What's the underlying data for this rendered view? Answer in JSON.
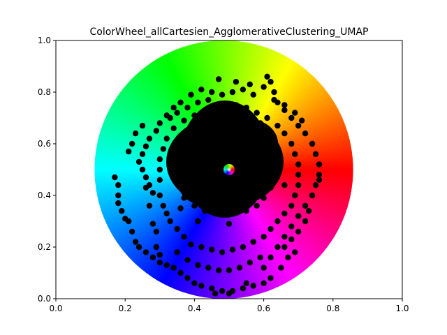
{
  "chart_data": {
    "type": "scatter",
    "title": "ColorWheel_allCartesien_AgglomerativeClustering_UMAP",
    "xlabel": "",
    "ylabel": "",
    "xlim": [
      0,
      1
    ],
    "ylim": [
      0,
      1
    ],
    "x_ticks": [
      "0.0",
      "0.2",
      "0.4",
      "0.6",
      "0.8",
      "1.0"
    ],
    "y_ticks": [
      "0.0",
      "0.2",
      "0.4",
      "0.6",
      "0.8",
      "1.0"
    ],
    "grid": false,
    "background": {
      "kind": "hsv-color-wheel",
      "center": [
        0.5,
        0.5
      ],
      "radius_fraction_of_axes": 0.5
    },
    "marker_color": "#000000",
    "series": [
      {
        "values": [
          [
            0.17,
            0.47
          ],
          [
            0.18,
            0.44
          ],
          [
            0.18,
            0.4
          ],
          [
            0.18,
            0.37
          ],
          [
            0.19,
            0.34
          ],
          [
            0.2,
            0.31
          ],
          [
            0.21,
            0.3
          ],
          [
            0.22,
            0.26
          ],
          [
            0.23,
            0.22
          ],
          [
            0.24,
            0.2
          ],
          [
            0.26,
            0.18
          ],
          [
            0.28,
            0.16
          ],
          [
            0.3,
            0.14
          ],
          [
            0.32,
            0.13
          ],
          [
            0.34,
            0.12
          ],
          [
            0.36,
            0.1
          ],
          [
            0.38,
            0.08
          ],
          [
            0.4,
            0.06
          ],
          [
            0.42,
            0.05
          ],
          [
            0.45,
            0.04
          ],
          [
            0.48,
            0.03
          ],
          [
            0.51,
            0.03
          ],
          [
            0.54,
            0.04
          ],
          [
            0.57,
            0.05
          ],
          [
            0.6,
            0.06
          ],
          [
            0.62,
            0.08
          ],
          [
            0.26,
            0.59
          ],
          [
            0.27,
            0.62
          ],
          [
            0.29,
            0.65
          ],
          [
            0.3,
            0.68
          ],
          [
            0.32,
            0.71
          ],
          [
            0.34,
            0.74
          ],
          [
            0.36,
            0.76
          ],
          [
            0.39,
            0.79
          ],
          [
            0.42,
            0.81
          ],
          [
            0.45,
            0.8
          ],
          [
            0.48,
            0.79
          ],
          [
            0.51,
            0.8
          ],
          [
            0.54,
            0.81
          ],
          [
            0.57,
            0.79
          ],
          [
            0.6,
            0.82
          ],
          [
            0.61,
            0.86
          ],
          [
            0.62,
            0.84
          ],
          [
            0.63,
            0.8
          ],
          [
            0.64,
            0.76
          ],
          [
            0.66,
            0.73
          ],
          [
            0.68,
            0.7
          ],
          [
            0.7,
            0.67
          ],
          [
            0.72,
            0.64
          ],
          [
            0.74,
            0.6
          ],
          [
            0.75,
            0.56
          ],
          [
            0.76,
            0.52
          ],
          [
            0.76,
            0.48
          ],
          [
            0.75,
            0.44
          ],
          [
            0.74,
            0.4
          ],
          [
            0.72,
            0.36
          ],
          [
            0.7,
            0.32
          ],
          [
            0.68,
            0.28
          ],
          [
            0.66,
            0.24
          ],
          [
            0.64,
            0.2
          ],
          [
            0.62,
            0.16
          ],
          [
            0.6,
            0.12
          ],
          [
            0.3,
            0.4
          ],
          [
            0.31,
            0.36
          ],
          [
            0.32,
            0.33
          ],
          [
            0.33,
            0.3
          ],
          [
            0.35,
            0.27
          ],
          [
            0.37,
            0.24
          ],
          [
            0.39,
            0.21
          ],
          [
            0.42,
            0.2
          ],
          [
            0.45,
            0.19
          ],
          [
            0.48,
            0.18
          ],
          [
            0.51,
            0.19
          ],
          [
            0.54,
            0.2
          ],
          [
            0.57,
            0.22
          ],
          [
            0.6,
            0.24
          ],
          [
            0.62,
            0.27
          ],
          [
            0.64,
            0.3
          ],
          [
            0.66,
            0.33
          ],
          [
            0.68,
            0.36
          ],
          [
            0.69,
            0.4
          ],
          [
            0.7,
            0.44
          ],
          [
            0.7,
            0.48
          ],
          [
            0.7,
            0.52
          ],
          [
            0.69,
            0.56
          ],
          [
            0.68,
            0.6
          ],
          [
            0.66,
            0.64
          ],
          [
            0.64,
            0.67
          ],
          [
            0.61,
            0.7
          ],
          [
            0.58,
            0.72
          ],
          [
            0.55,
            0.74
          ],
          [
            0.52,
            0.75
          ],
          [
            0.49,
            0.75
          ],
          [
            0.46,
            0.74
          ],
          [
            0.43,
            0.73
          ],
          [
            0.4,
            0.71
          ],
          [
            0.37,
            0.69
          ],
          [
            0.34,
            0.66
          ],
          [
            0.32,
            0.62
          ],
          [
            0.31,
            0.58
          ],
          [
            0.3,
            0.54
          ],
          [
            0.3,
            0.5
          ],
          [
            0.3,
            0.46
          ],
          [
            0.24,
            0.53
          ],
          [
            0.25,
            0.5
          ],
          [
            0.26,
            0.47
          ],
          [
            0.27,
            0.44
          ],
          [
            0.28,
            0.41
          ],
          [
            0.28,
            0.29
          ],
          [
            0.29,
            0.26
          ],
          [
            0.35,
            0.18
          ],
          [
            0.38,
            0.15
          ],
          [
            0.41,
            0.13
          ],
          [
            0.44,
            0.12
          ],
          [
            0.47,
            0.11
          ],
          [
            0.5,
            0.11
          ],
          [
            0.53,
            0.12
          ],
          [
            0.56,
            0.14
          ],
          [
            0.59,
            0.16
          ],
          [
            0.66,
            0.2
          ],
          [
            0.68,
            0.23
          ],
          [
            0.7,
            0.26
          ],
          [
            0.72,
            0.3
          ],
          [
            0.73,
            0.34
          ],
          [
            0.71,
            0.69
          ],
          [
            0.69,
            0.72
          ],
          [
            0.66,
            0.75
          ],
          [
            0.63,
            0.77
          ],
          [
            0.44,
            0.77
          ],
          [
            0.41,
            0.76
          ],
          [
            0.38,
            0.74
          ],
          [
            0.35,
            0.72
          ],
          [
            0.33,
            0.7
          ],
          [
            0.22,
            0.6
          ],
          [
            0.21,
            0.57
          ],
          [
            0.23,
            0.64
          ],
          [
            0.25,
            0.67
          ],
          [
            0.58,
            0.61
          ],
          [
            0.36,
            0.35
          ],
          [
            0.36,
            0.6
          ],
          [
            0.36,
            0.62
          ],
          [
            0.4,
            0.64
          ],
          [
            0.44,
            0.65
          ],
          [
            0.48,
            0.66
          ],
          [
            0.52,
            0.66
          ],
          [
            0.56,
            0.64
          ],
          [
            0.59,
            0.62
          ],
          [
            0.61,
            0.59
          ],
          [
            0.63,
            0.55
          ],
          [
            0.63,
            0.51
          ],
          [
            0.63,
            0.47
          ],
          [
            0.62,
            0.43
          ],
          [
            0.6,
            0.39
          ],
          [
            0.58,
            0.36
          ],
          [
            0.55,
            0.34
          ],
          [
            0.51,
            0.33
          ],
          [
            0.47,
            0.33
          ],
          [
            0.43,
            0.34
          ],
          [
            0.4,
            0.36
          ],
          [
            0.37,
            0.39
          ],
          [
            0.36,
            0.43
          ],
          [
            0.35,
            0.47
          ],
          [
            0.35,
            0.51
          ],
          [
            0.35,
            0.55
          ],
          [
            0.47,
            0.85
          ],
          [
            0.52,
            0.84
          ],
          [
            0.56,
            0.83
          ],
          [
            0.5,
            0.02
          ],
          [
            0.46,
            0.02
          ],
          [
            0.55,
            0.06
          ],
          [
            0.65,
            0.12
          ],
          [
            0.67,
            0.16
          ],
          [
            0.69,
            0.18
          ],
          [
            0.76,
            0.46
          ],
          [
            0.66,
            0.44
          ],
          [
            0.27,
            0.36
          ],
          [
            0.29,
            0.2
          ],
          [
            0.3,
            0.17
          ],
          [
            0.25,
            0.56
          ],
          [
            0.26,
            0.43
          ],
          [
            0.5,
            0.29
          ],
          [
            0.5,
            0.71
          ],
          [
            0.41,
            0.3
          ],
          [
            0.59,
            0.68
          ]
        ]
      }
    ]
  }
}
